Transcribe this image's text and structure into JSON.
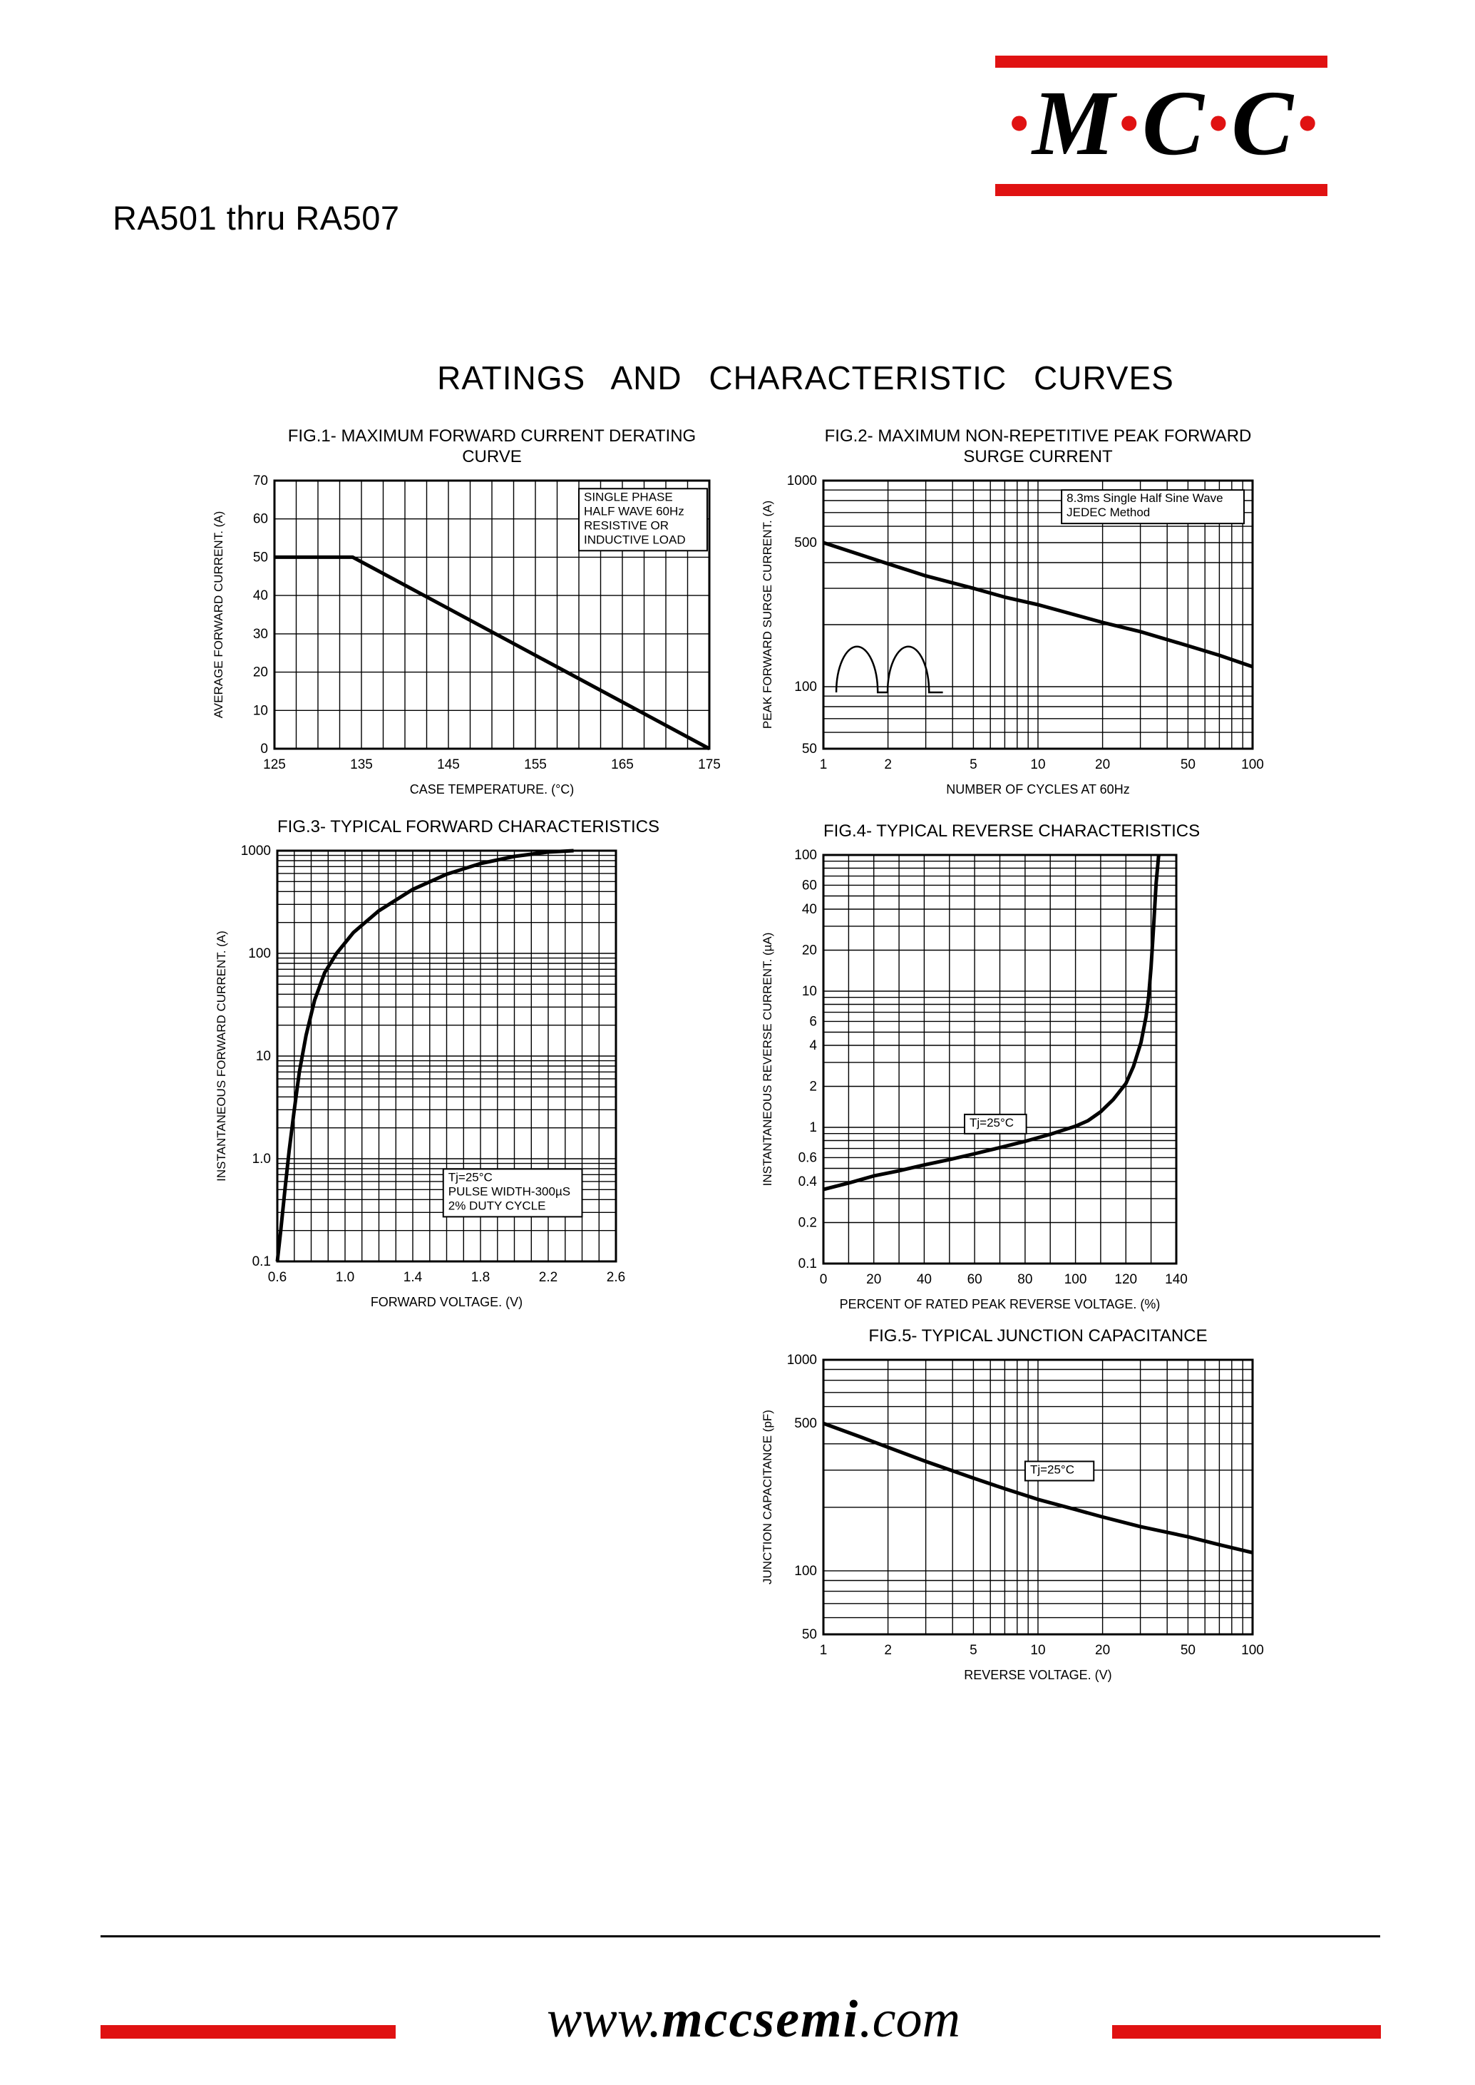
{
  "colors": {
    "accent_red": "#e01212",
    "ink": "#000000"
  },
  "header": {
    "logo": {
      "dot": "·",
      "letter_m": "M",
      "letter_c": "C"
    },
    "part_range": "RA501 thru RA507",
    "section_title": "RATINGS AND CHARACTERISTIC CURVES"
  },
  "footer": {
    "url_prefix": "www.",
    "url_name": "mccsemi",
    "url_suffix": ".com"
  },
  "chart_data": [
    {
      "id": "fig1",
      "type": "line",
      "title": "FIG.1- MAXIMUM FORWARD CURRENT DERATING\nCURVE",
      "xlabel": "CASE TEMPERATURE. (°C)",
      "ylabel": "AVERAGE FORWARD CURRENT. (A)",
      "x": {
        "scale": "linear",
        "min": 125,
        "max": 175,
        "grid_step": 2.5,
        "ticks": [
          [
            125,
            "125"
          ],
          [
            135,
            "135"
          ],
          [
            145,
            "145"
          ],
          [
            155,
            "155"
          ],
          [
            165,
            "165"
          ],
          [
            175,
            "175"
          ]
        ]
      },
      "y": {
        "scale": "linear",
        "min": 0,
        "max": 70,
        "grid_step": 10,
        "ticks": [
          [
            0,
            "0"
          ],
          [
            10,
            "10"
          ],
          [
            20,
            "20"
          ],
          [
            30,
            "30"
          ],
          [
            40,
            "40"
          ],
          [
            50,
            "50"
          ],
          [
            60,
            "60"
          ],
          [
            70,
            "70"
          ]
        ]
      },
      "series": [
        {
          "name": "derating",
          "points": [
            [
              125,
              50
            ],
            [
              134,
              50
            ],
            [
              175,
              0
            ]
          ]
        }
      ],
      "annotations": [
        {
          "type": "box",
          "fx": 0.7,
          "fy": 0.03,
          "fw": 0.295,
          "lines": [
            "SINGLE PHASE",
            "HALF WAVE 60Hz",
            "RESISTIVE OR",
            "INDUCTIVE LOAD"
          ]
        }
      ]
    },
    {
      "id": "fig2",
      "type": "line",
      "title": "FIG.2- MAXIMUM NON-REPETITIVE PEAK FORWARD\nSURGE CURRENT",
      "xlabel": "NUMBER OF CYCLES AT 60Hz",
      "ylabel": "PEAK FORWARD SURGE CURRENT. (A)",
      "x": {
        "scale": "log",
        "min": 1,
        "max": 100,
        "ticks": [
          [
            1,
            "1"
          ],
          [
            2,
            "2"
          ],
          [
            5,
            "5"
          ],
          [
            10,
            "10"
          ],
          [
            20,
            "20"
          ],
          [
            50,
            "50"
          ],
          [
            100,
            "100"
          ]
        ]
      },
      "y": {
        "scale": "log",
        "min": 50,
        "max": 1000,
        "ticks": [
          [
            50,
            "50"
          ],
          [
            100,
            "100"
          ],
          [
            500,
            "500"
          ],
          [
            1000,
            "1000"
          ]
        ]
      },
      "series": [
        {
          "name": "surge-current",
          "points": [
            [
              1,
              500
            ],
            [
              2,
              395
            ],
            [
              3,
              345
            ],
            [
              5,
              300
            ],
            [
              7,
              272
            ],
            [
              10,
              250
            ],
            [
              20,
              205
            ],
            [
              30,
              185
            ],
            [
              50,
              158
            ],
            [
              70,
              142
            ],
            [
              100,
              125
            ]
          ]
        }
      ],
      "annotations": [
        {
          "type": "box",
          "fx": 0.555,
          "fy": 0.035,
          "fw": 0.425,
          "lines": [
            "8.3ms Single Half Sine Wave",
            "JEDEC Method"
          ]
        },
        {
          "type": "waveform",
          "fx": 0.03,
          "fy": 0.6,
          "fw": 0.23,
          "fh": 0.19
        }
      ]
    },
    {
      "id": "fig3",
      "type": "line",
      "title": "FIG.3- TYPICAL FORWARD CHARACTERISTICS",
      "xlabel": "FORWARD VOLTAGE. (V)",
      "ylabel": "INSTANTANEOUS FORWARD CURRENT. (A)",
      "x": {
        "scale": "linear",
        "min": 0.6,
        "max": 2.6,
        "grid_step": 0.1,
        "ticks": [
          [
            0.6,
            "0.6"
          ],
          [
            1.0,
            "1.0"
          ],
          [
            1.4,
            "1.4"
          ],
          [
            1.8,
            "1.8"
          ],
          [
            2.2,
            "2.2"
          ],
          [
            2.6,
            "2.6"
          ]
        ]
      },
      "y": {
        "scale": "log",
        "min": 0.1,
        "max": 1000,
        "ticks": [
          [
            0.1,
            "0.1"
          ],
          [
            1,
            "1.0"
          ],
          [
            10,
            "10"
          ],
          [
            100,
            "100"
          ],
          [
            1000,
            "1000"
          ]
        ]
      },
      "series": [
        {
          "name": "forward-current",
          "points": [
            [
              0.6,
              0.1
            ],
            [
              0.62,
              0.2
            ],
            [
              0.645,
              0.5
            ],
            [
              0.67,
              1.2
            ],
            [
              0.7,
              3
            ],
            [
              0.73,
              7
            ],
            [
              0.77,
              16
            ],
            [
              0.82,
              35
            ],
            [
              0.88,
              65
            ],
            [
              0.95,
              100
            ],
            [
              1.05,
              160
            ],
            [
              1.2,
              260
            ],
            [
              1.4,
              420
            ],
            [
              1.6,
              590
            ],
            [
              1.8,
              750
            ],
            [
              2.0,
              880
            ],
            [
              2.2,
              970
            ],
            [
              2.35,
              1000
            ]
          ]
        }
      ],
      "annotations": [
        {
          "type": "box",
          "fx": 0.49,
          "fy": 0.775,
          "fw": 0.41,
          "lines": [
            "Tj=25°C",
            "PULSE WIDTH-300µS",
            "2% DUTY CYCLE"
          ]
        }
      ]
    },
    {
      "id": "fig4",
      "type": "line",
      "title": "FIG.4- TYPICAL REVERSE CHARACTERISTICS",
      "xlabel": "PERCENT OF RATED PEAK REVERSE VOLTAGE. (%)",
      "ylabel": "INSTANTANEOUS REVERSE CURRENT. (µA)",
      "x": {
        "scale": "linear",
        "min": 0,
        "max": 140,
        "grid_step": 10,
        "ticks": [
          [
            0,
            "0"
          ],
          [
            20,
            "20"
          ],
          [
            40,
            "40"
          ],
          [
            60,
            "60"
          ],
          [
            80,
            "80"
          ],
          [
            100,
            "100"
          ],
          [
            120,
            "120"
          ],
          [
            140,
            "140"
          ]
        ]
      },
      "y": {
        "scale": "log",
        "min": 0.1,
        "max": 100,
        "ticks": [
          [
            0.1,
            "0.1"
          ],
          [
            0.2,
            "0.2"
          ],
          [
            0.4,
            "0.4"
          ],
          [
            0.6,
            "0.6"
          ],
          [
            1,
            "1"
          ],
          [
            2,
            "2"
          ],
          [
            4,
            "4"
          ],
          [
            6,
            "6"
          ],
          [
            10,
            "10"
          ],
          [
            20,
            "20"
          ],
          [
            40,
            "40"
          ],
          [
            60,
            "60"
          ],
          [
            100,
            "100"
          ]
        ]
      },
      "series": [
        {
          "name": "reverse-current",
          "points": [
            [
              0,
              0.35
            ],
            [
              10,
              0.39
            ],
            [
              20,
              0.44
            ],
            [
              30,
              0.48
            ],
            [
              40,
              0.53
            ],
            [
              50,
              0.58
            ],
            [
              60,
              0.64
            ],
            [
              70,
              0.71
            ],
            [
              80,
              0.79
            ],
            [
              90,
              0.89
            ],
            [
              100,
              1.02
            ],
            [
              105,
              1.12
            ],
            [
              110,
              1.3
            ],
            [
              115,
              1.6
            ],
            [
              120,
              2.1
            ],
            [
              123,
              2.8
            ],
            [
              126,
              4.2
            ],
            [
              128,
              6.5
            ],
            [
              129,
              9
            ],
            [
              130,
              15
            ],
            [
              131,
              30
            ],
            [
              132,
              62
            ],
            [
              133,
              100
            ]
          ]
        }
      ],
      "annotations": [
        {
          "type": "box",
          "fx": 0.4,
          "fy": 0.635,
          "fw": 0.175,
          "lines": [
            "Tj=25°C"
          ]
        }
      ]
    },
    {
      "id": "fig5",
      "type": "line",
      "title": "FIG.5- TYPICAL JUNCTION CAPACITANCE",
      "xlabel": "REVERSE VOLTAGE. (V)",
      "ylabel": "JUNCTION CAPACITANCE (pF)",
      "x": {
        "scale": "log",
        "min": 1,
        "max": 100,
        "ticks": [
          [
            1,
            "1"
          ],
          [
            2,
            "2"
          ],
          [
            5,
            "5"
          ],
          [
            10,
            "10"
          ],
          [
            20,
            "20"
          ],
          [
            50,
            "50"
          ],
          [
            100,
            "100"
          ]
        ]
      },
      "y": {
        "scale": "log",
        "min": 50,
        "max": 1000,
        "ticks": [
          [
            50,
            "50"
          ],
          [
            100,
            "100"
          ],
          [
            500,
            "500"
          ],
          [
            1000,
            "1000"
          ]
        ]
      },
      "series": [
        {
          "name": "junction-capacitance",
          "points": [
            [
              1,
              500
            ],
            [
              1.5,
              430
            ],
            [
              2,
              385
            ],
            [
              3,
              330
            ],
            [
              5,
              275
            ],
            [
              7,
              245
            ],
            [
              10,
              218
            ],
            [
              15,
              195
            ],
            [
              20,
              180
            ],
            [
              30,
              162
            ],
            [
              50,
              145
            ],
            [
              70,
              133
            ],
            [
              100,
              122
            ]
          ]
        }
      ],
      "annotations": [
        {
          "type": "box",
          "fx": 0.47,
          "fy": 0.37,
          "fw": 0.16,
          "lines": [
            "Tj=25°C"
          ]
        }
      ]
    }
  ]
}
